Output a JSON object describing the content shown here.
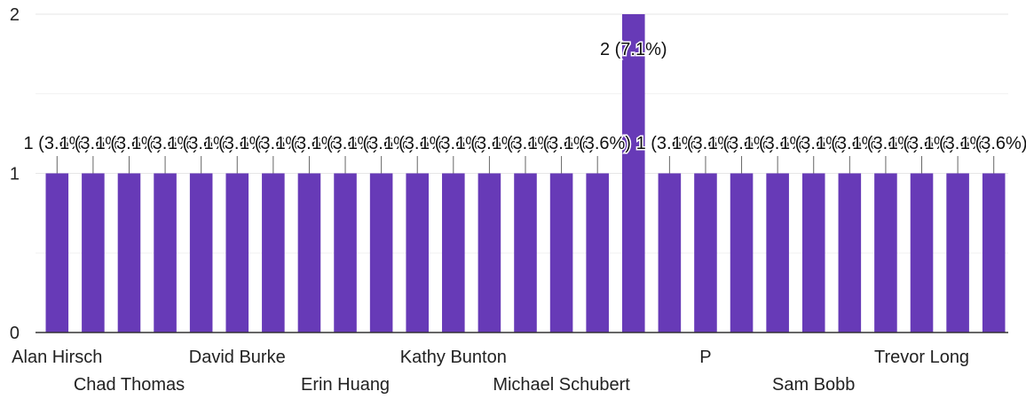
{
  "chart_data": {
    "type": "bar",
    "title": "",
    "xlabel": "",
    "ylabel": "",
    "ylim": [
      0,
      2
    ],
    "yticks": [
      "0",
      "1",
      "2"
    ],
    "grid": true,
    "bar_color": "#673ab7",
    "categories": [
      "Alan Hirsch",
      "",
      "Chad Thomas",
      "",
      "",
      "David Burke",
      "",
      "",
      "Erin Huang",
      "",
      "",
      "Kathy Bunton",
      "",
      "",
      "Michael Schubert",
      "",
      "",
      "",
      "P",
      "",
      "",
      "Sam Bobb",
      "",
      "",
      "Trevor Long",
      "",
      ""
    ],
    "values": [
      1,
      1,
      1,
      1,
      1,
      1,
      1,
      1,
      1,
      1,
      1,
      1,
      1,
      1,
      1,
      1,
      2,
      1,
      1,
      1,
      1,
      1,
      1,
      1,
      1,
      1,
      1
    ],
    "data_labels": [
      "1 (3.6%)",
      "1 (3.6%)",
      "1 (3.6%)",
      "1 (3.6%)",
      "1 (3.6%)",
      "1 (3.6%)",
      "1 (3.6%)",
      "1 (3.6%)",
      "1 (3.6%)",
      "1 (3.6%)",
      "1 (3.6%)",
      "1 (3.6%)",
      "1 (3.6%)",
      "1 (3.6%)",
      "1 (3.6%)",
      "1 (3.6%)",
      "2 (7.1%)",
      "1 (3.6%)",
      "1 (3.6%)",
      "1 (3.6%)",
      "1 (3.6%)",
      "1 (3.6%)",
      "1 (3.6%)",
      "1 (3.6%)",
      "1 (3.6%)",
      "1 (3.6%)",
      "1 (3.6%)"
    ]
  }
}
